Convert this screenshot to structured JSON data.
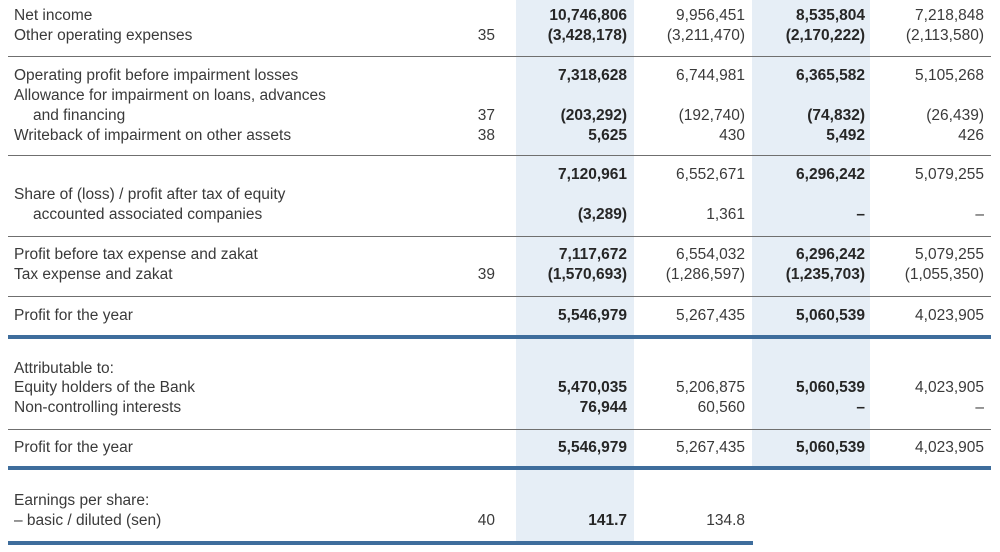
{
  "rows": {
    "net_income": {
      "label": "Net income",
      "note": "",
      "v": [
        "10,746,806",
        "9,956,451",
        "8,535,804",
        "7,218,848"
      ]
    },
    "other_opex": {
      "label": "Other operating expenses",
      "note": "35",
      "v": [
        "(3,428,178)",
        "(3,211,470)",
        "(2,170,222)",
        "(2,113,580)"
      ]
    },
    "op_profit": {
      "label": "Operating profit before impairment losses",
      "note": "",
      "v": [
        "7,318,628",
        "6,744,981",
        "6,365,582",
        "5,105,268"
      ]
    },
    "allowance": {
      "label_line1": "Allowance for impairment on loans, advances",
      "label_line2": "and financing",
      "note": "37",
      "v": [
        "(203,292)",
        "(192,740)",
        "(74,832)",
        "(26,439)"
      ]
    },
    "writeback": {
      "label": "Writeback of impairment on other assets",
      "note": "38",
      "v": [
        "5,625",
        "430",
        "5,492",
        "426"
      ]
    },
    "subtotal": {
      "v": [
        "7,120,961",
        "6,552,671",
        "6,296,242",
        "5,079,255"
      ]
    },
    "share_assoc": {
      "label_line1": "Share of (loss) / profit after tax of equity",
      "label_line2": "accounted associated companies",
      "v": [
        "(3,289)",
        "1,361",
        "–",
        "–"
      ]
    },
    "profit_before_tax": {
      "label": "Profit before tax expense and zakat",
      "note": "",
      "v": [
        "7,117,672",
        "6,554,032",
        "6,296,242",
        "5,079,255"
      ]
    },
    "tax": {
      "label": "Tax expense and zakat",
      "note": "39",
      "v": [
        "(1,570,693)",
        "(1,286,597)",
        "(1,235,703)",
        "(1,055,350)"
      ]
    },
    "profit_year_1": {
      "label": "Profit for the year",
      "v": [
        "5,546,979",
        "5,267,435",
        "5,060,539",
        "4,023,905"
      ]
    },
    "attributable": {
      "label": "Attributable to:"
    },
    "equity_holders": {
      "label": "Equity holders of the Bank",
      "v": [
        "5,470,035",
        "5,206,875",
        "5,060,539",
        "4,023,905"
      ]
    },
    "nci": {
      "label": "Non-controlling interests",
      "v": [
        "76,944",
        "60,560",
        "–",
        "–"
      ]
    },
    "profit_year_2": {
      "label": "Profit for the year",
      "v": [
        "5,546,979",
        "5,267,435",
        "5,060,539",
        "4,023,905"
      ]
    },
    "eps_header": {
      "label": "Earnings per share:"
    },
    "eps": {
      "label": "– basic / diluted (sen)",
      "note": "40",
      "v": [
        "141.7",
        "134.8"
      ]
    }
  },
  "colors": {
    "shade": "#e6eef6",
    "rule": "#6f6f6f",
    "thick_rule": "#3e6d9c"
  }
}
